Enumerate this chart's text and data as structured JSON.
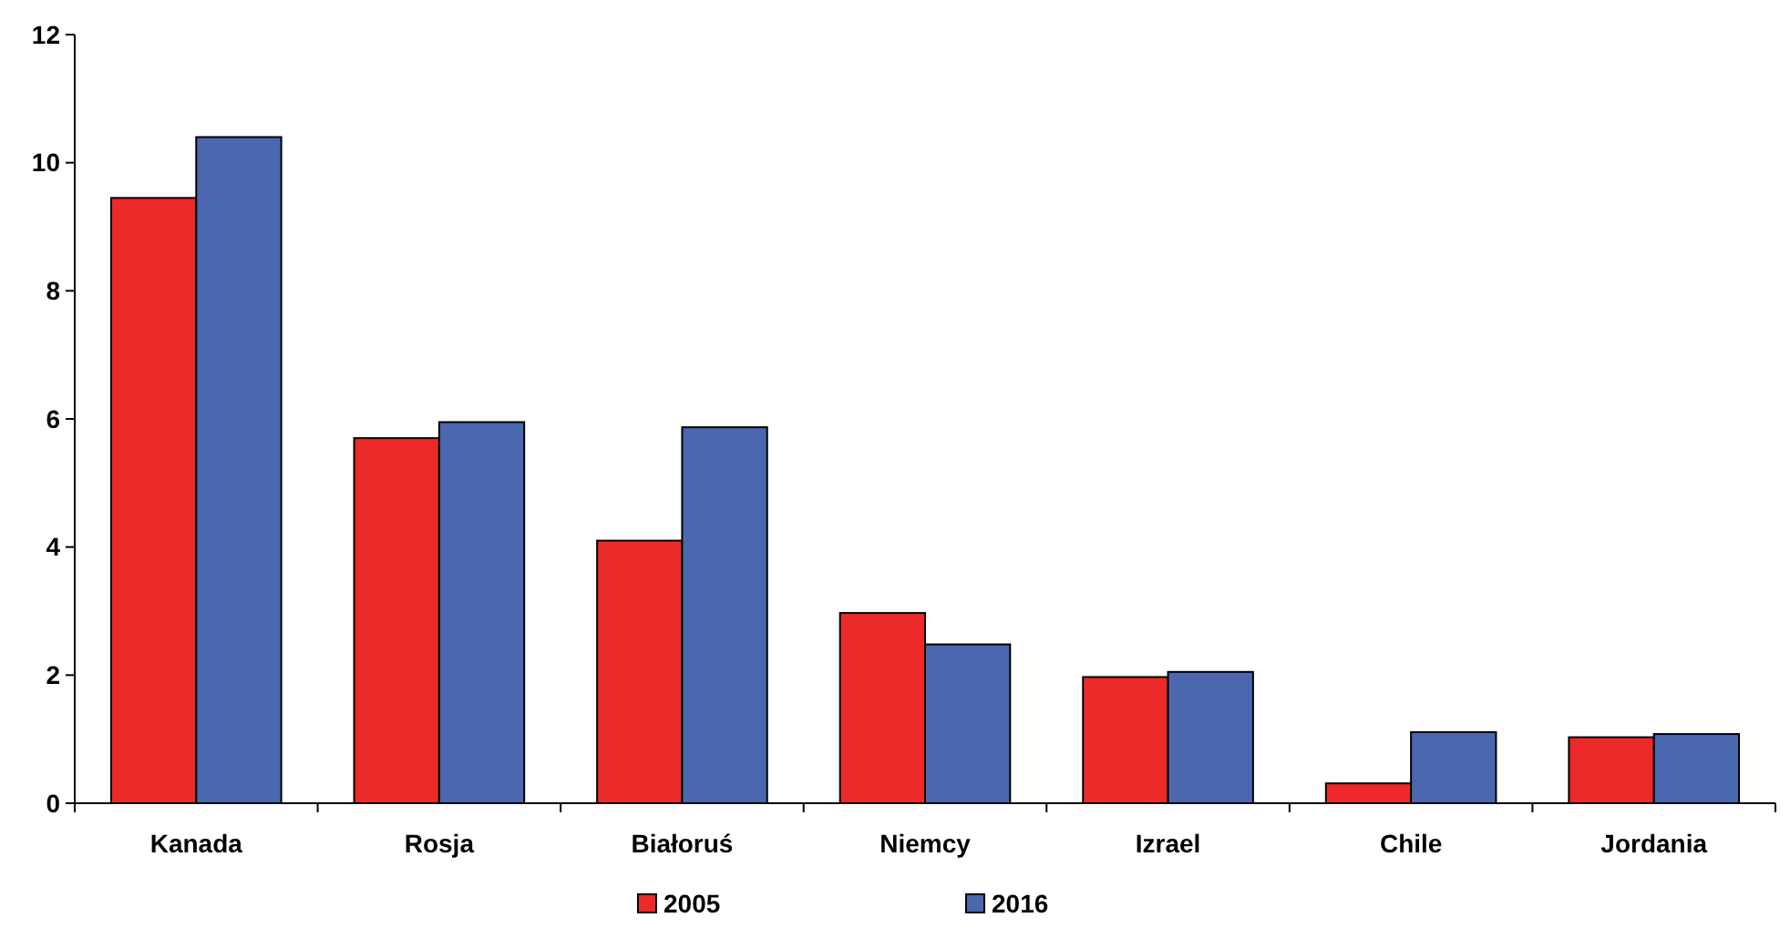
{
  "chart_data": {
    "type": "bar",
    "categories": [
      "Kanada",
      "Rosja",
      "Białoruś",
      "Niemcy",
      "Izrael",
      "Chile",
      "Jordania"
    ],
    "series": [
      {
        "name": "2005",
        "color": "#ed2a2a",
        "values": [
          9.45,
          5.7,
          4.1,
          2.97,
          1.97,
          0.31,
          1.03
        ]
      },
      {
        "name": "2016",
        "color": "#4a67b0",
        "values": [
          10.4,
          5.95,
          5.87,
          2.48,
          2.05,
          1.11,
          1.08
        ]
      }
    ],
    "ylim": [
      0,
      12
    ],
    "yticks": [
      0,
      2,
      4,
      6,
      8,
      10,
      12
    ],
    "grid": false,
    "legend": "bottom"
  }
}
